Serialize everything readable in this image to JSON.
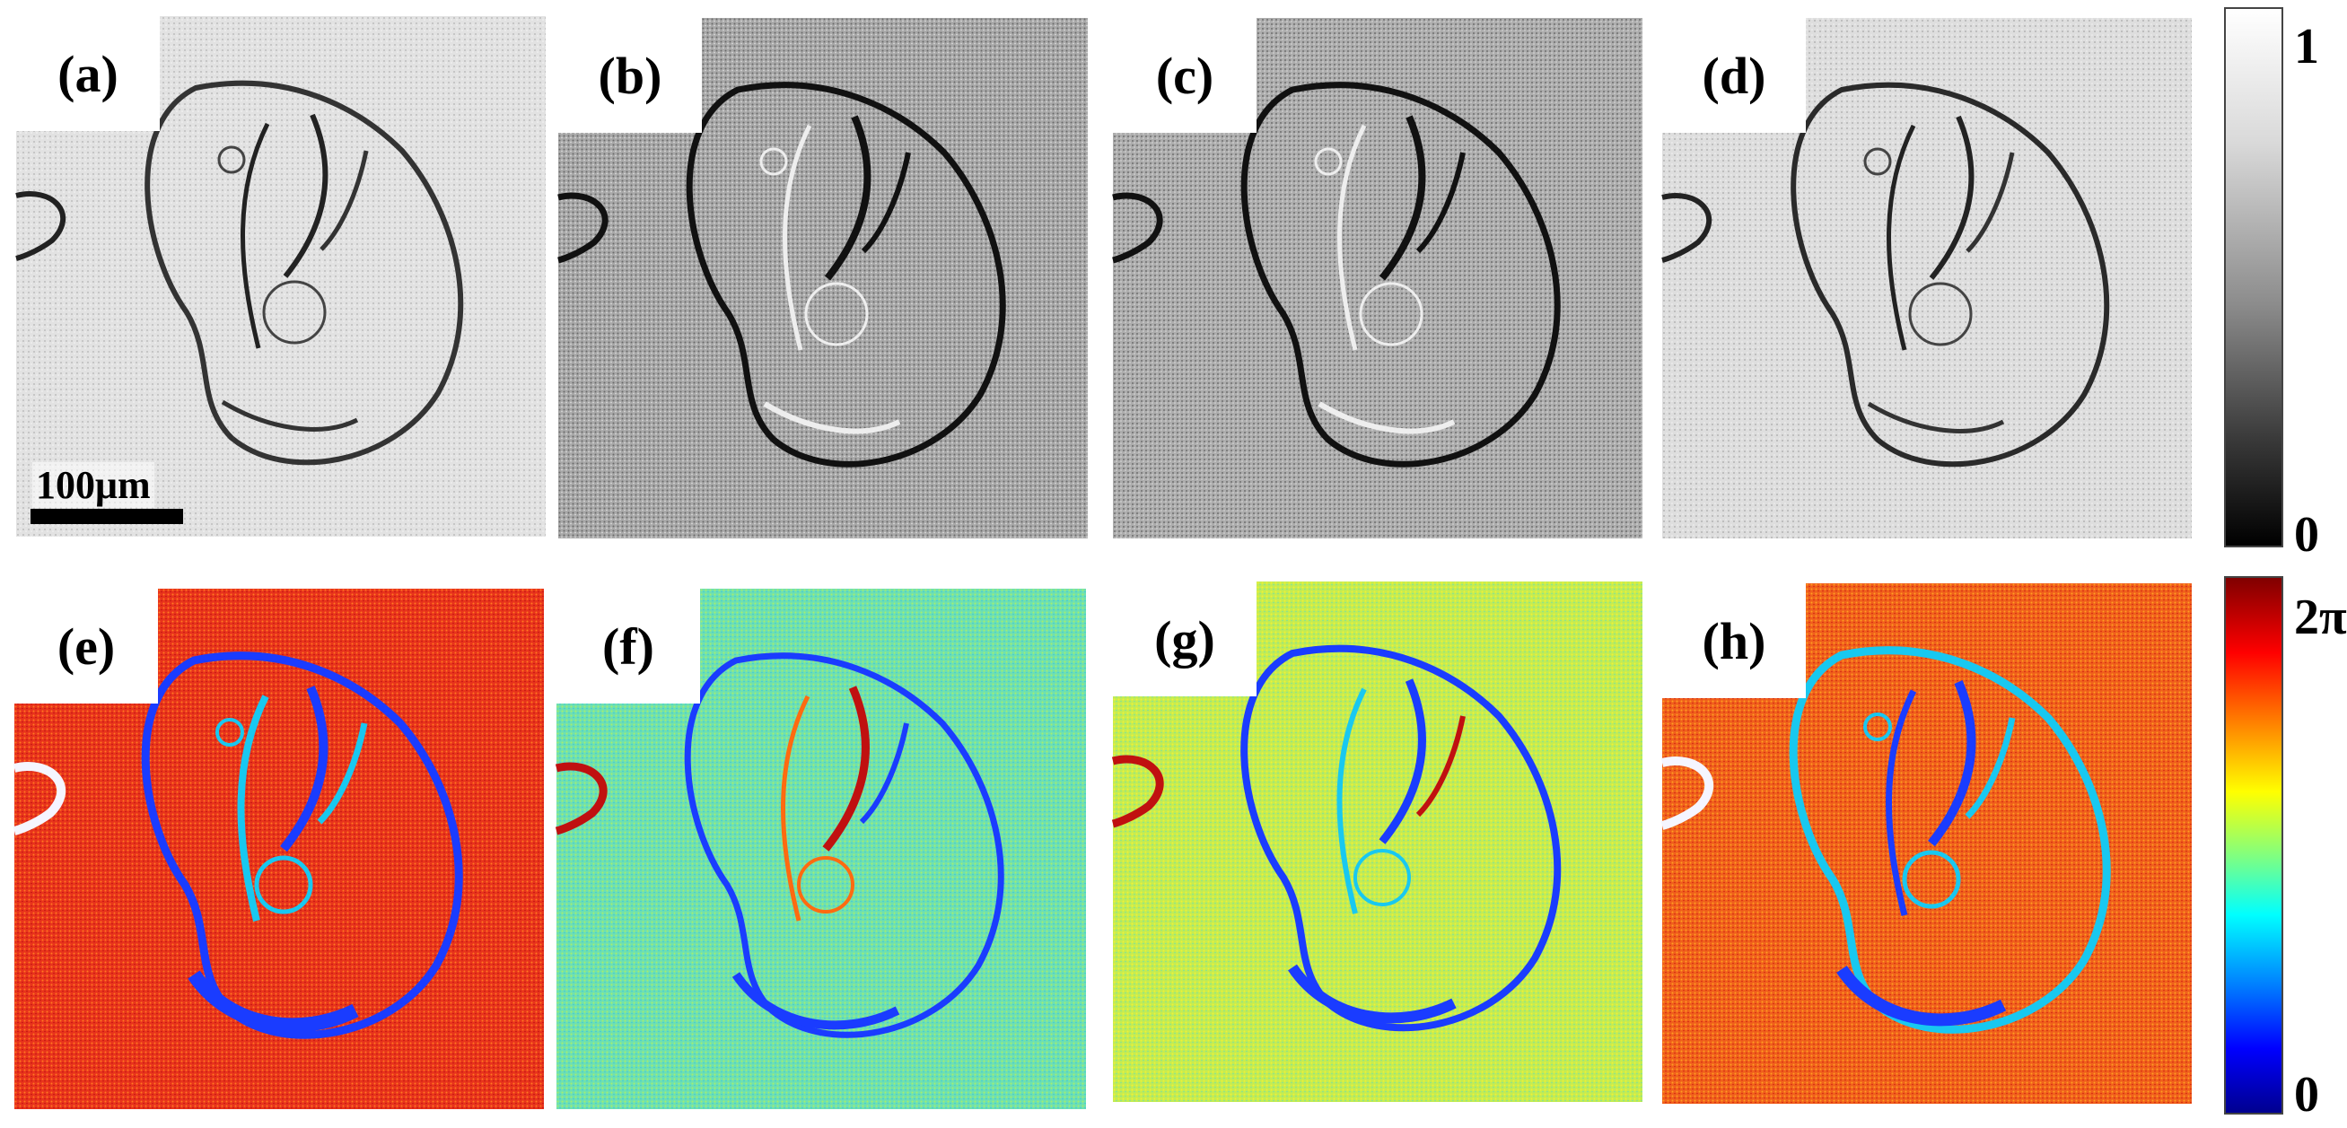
{
  "figure": {
    "top_row": {
      "panels": [
        {
          "label": "(a)"
        },
        {
          "label": "(b)"
        },
        {
          "label": "(c)"
        },
        {
          "label": "(d)"
        }
      ],
      "scale_bar": "100μm",
      "colorbar": {
        "max_label": "1",
        "min_label": "0",
        "colormap": "gray"
      }
    },
    "bottom_row": {
      "panels": [
        {
          "label": "(e)",
          "dominant_color": "#e8341c"
        },
        {
          "label": "(f)",
          "dominant_color": "#6fe0b0"
        },
        {
          "label": "(g)",
          "dominant_color": "#c4ec52"
        },
        {
          "label": "(h)",
          "dominant_color": "#f0601c"
        }
      ],
      "colorbar": {
        "max_label": "2π",
        "min_label": "0",
        "colormap": "jet"
      }
    }
  },
  "colors": {
    "feature_dark": "#1a1a1a",
    "phase_edge_blue": "#1a3cff",
    "phase_edge_cyan": "#18c8f0",
    "phase_edge_red": "#c01010"
  }
}
